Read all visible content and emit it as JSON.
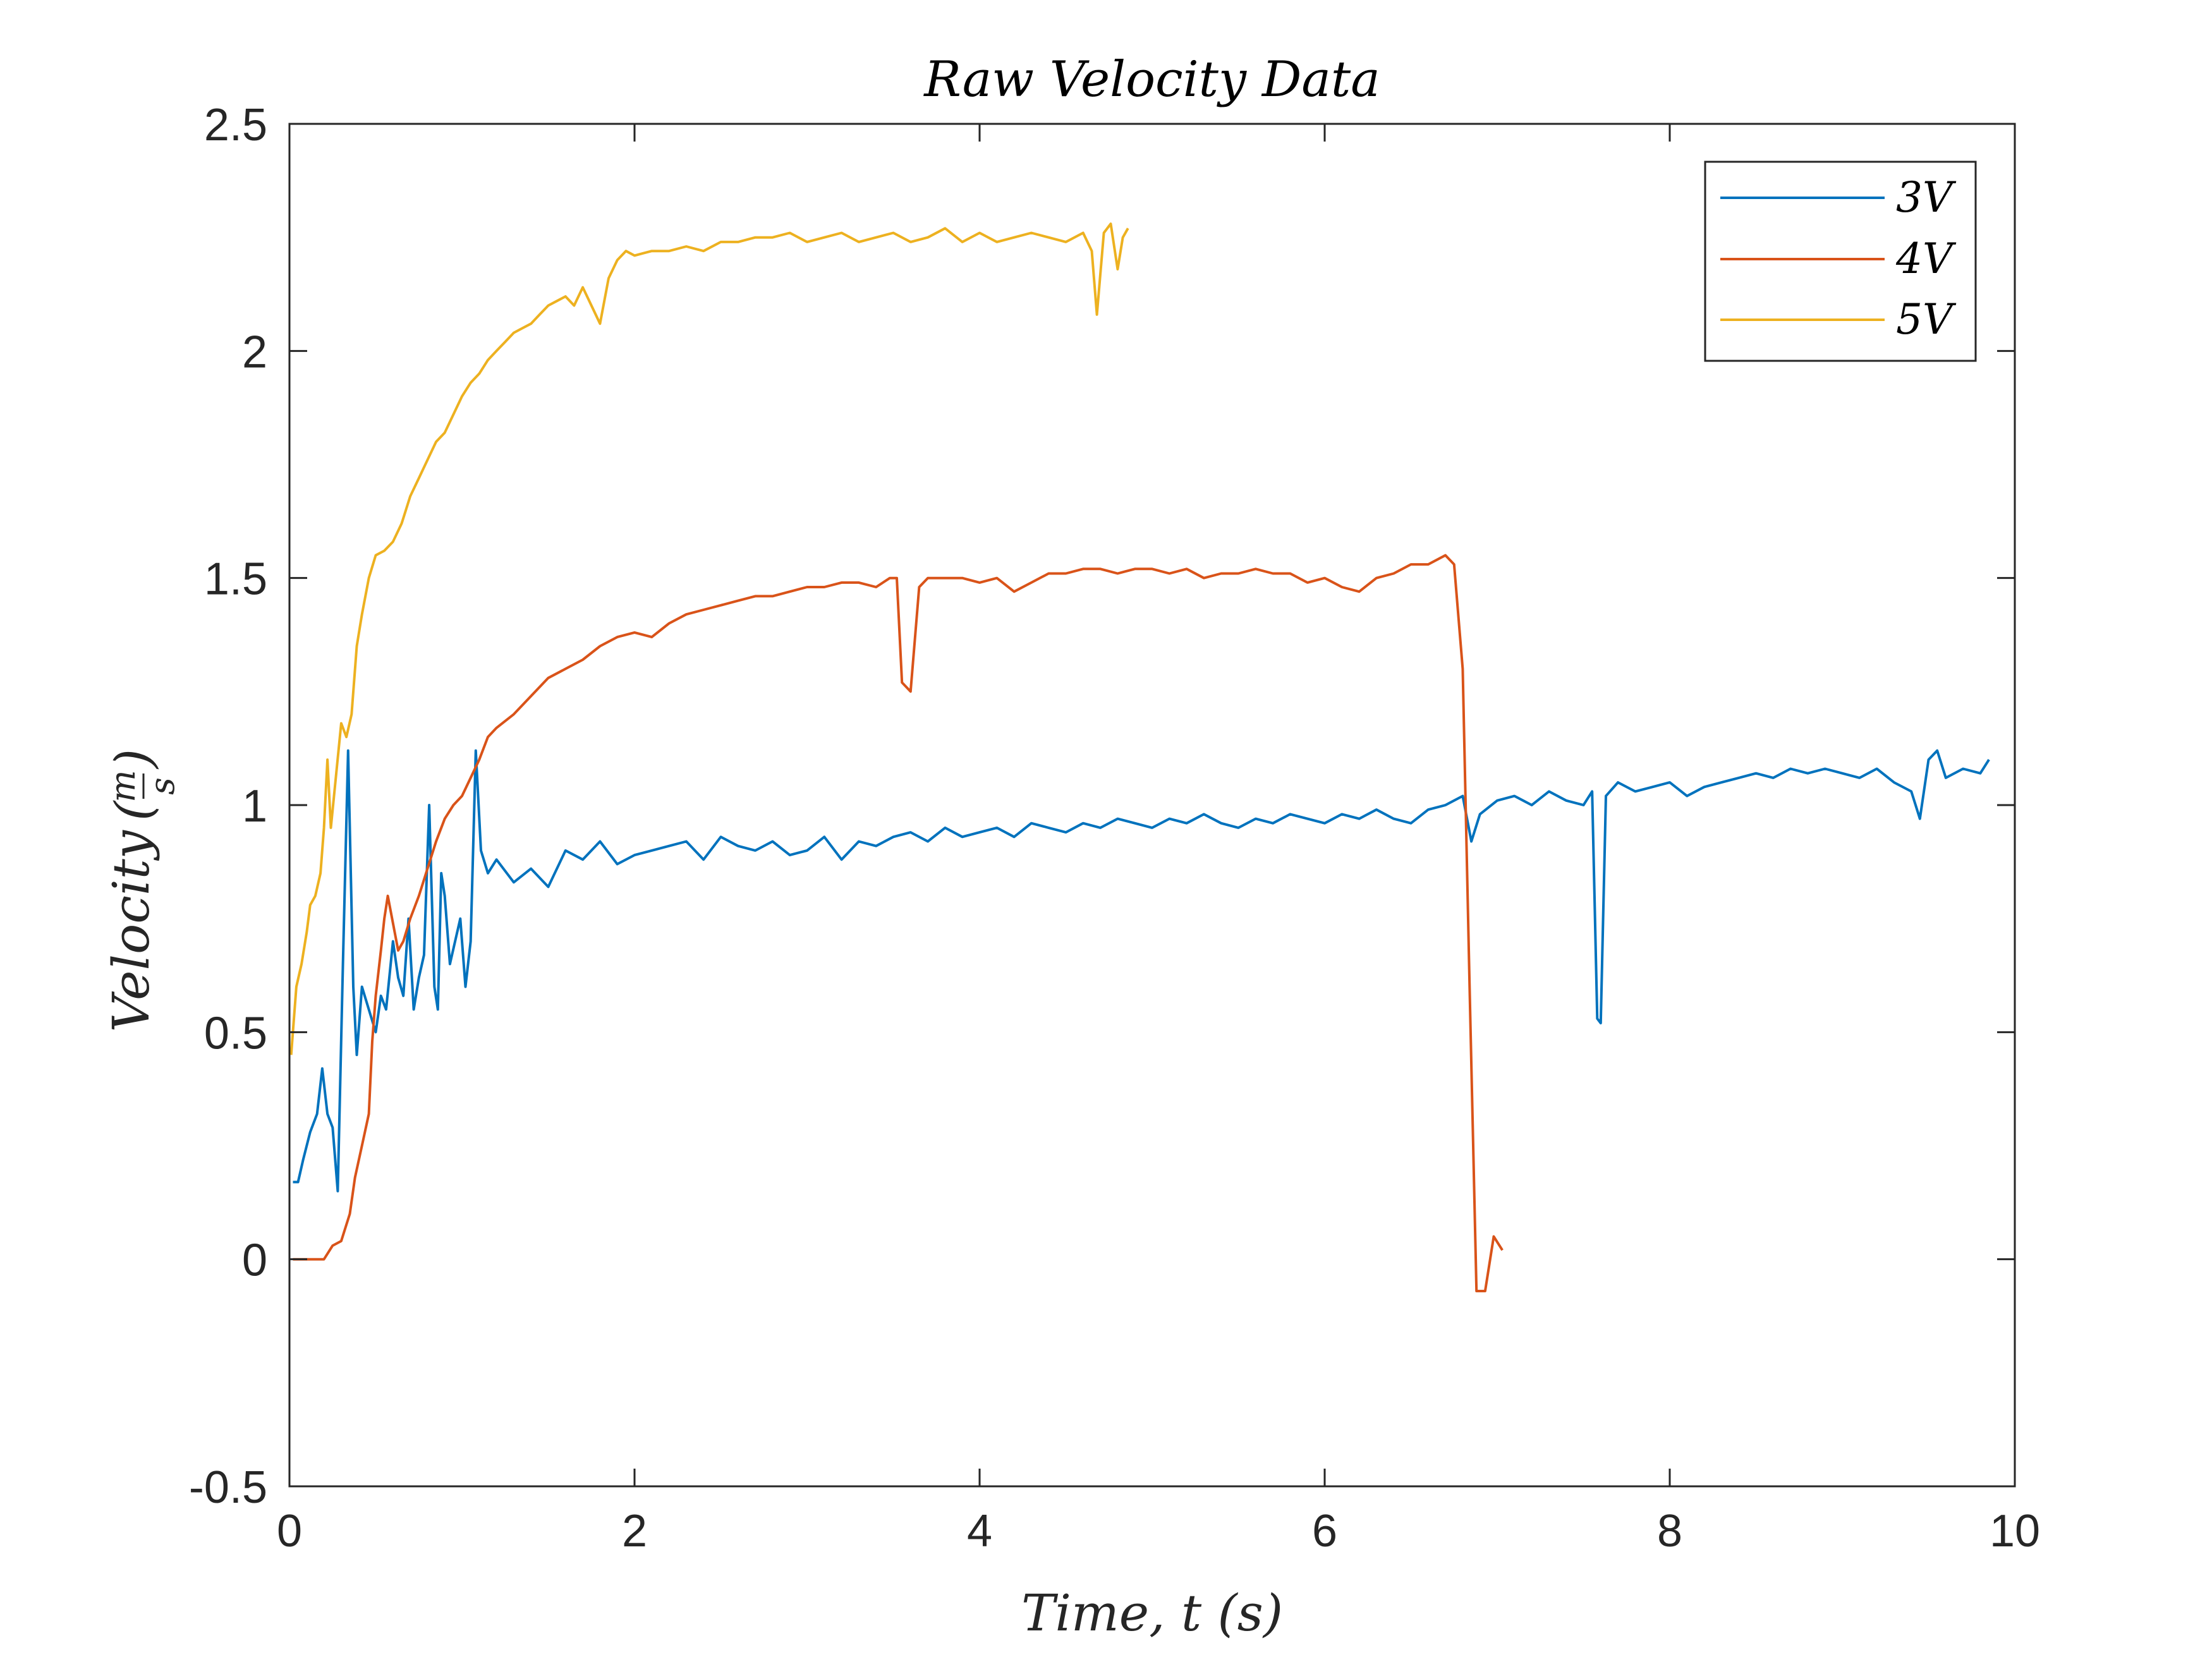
{
  "chart_data": {
    "type": "line",
    "title": "Raw Velocity Data",
    "xlabel": "Time, t (s)",
    "ylabel": "Velocity (m/s)",
    "ylabel_main": "Velocity",
    "ylabel_num": "m",
    "ylabel_den": "s",
    "xlim": [
      0,
      10
    ],
    "ylim": [
      -0.5,
      2.5
    ],
    "xticks": [
      0,
      2,
      4,
      6,
      8,
      10
    ],
    "xtick_labels": [
      "0",
      "2",
      "4",
      "6",
      "8",
      "10"
    ],
    "yticks": [
      -0.5,
      0,
      0.5,
      1,
      1.5,
      2,
      2.5
    ],
    "ytick_labels": [
      "-0.5",
      "0",
      "0.5",
      "1",
      "1.5",
      "2",
      "2.5"
    ],
    "grid": false,
    "legend_position": "top-right",
    "series": [
      {
        "name": "3V",
        "color": "#0072BD",
        "points": [
          [
            0.02,
            0.17
          ],
          [
            0.05,
            0.17
          ],
          [
            0.08,
            0.22
          ],
          [
            0.12,
            0.28
          ],
          [
            0.16,
            0.32
          ],
          [
            0.19,
            0.42
          ],
          [
            0.22,
            0.32
          ],
          [
            0.25,
            0.29
          ],
          [
            0.28,
            0.15
          ],
          [
            0.31,
            0.65
          ],
          [
            0.34,
            1.12
          ],
          [
            0.37,
            0.6
          ],
          [
            0.39,
            0.45
          ],
          [
            0.42,
            0.6
          ],
          [
            0.46,
            0.55
          ],
          [
            0.5,
            0.5
          ],
          [
            0.53,
            0.58
          ],
          [
            0.56,
            0.55
          ],
          [
            0.6,
            0.7
          ],
          [
            0.63,
            0.62
          ],
          [
            0.66,
            0.58
          ],
          [
            0.69,
            0.75
          ],
          [
            0.72,
            0.55
          ],
          [
            0.75,
            0.62
          ],
          [
            0.78,
            0.67
          ],
          [
            0.81,
            1.0
          ],
          [
            0.84,
            0.6
          ],
          [
            0.86,
            0.55
          ],
          [
            0.88,
            0.85
          ],
          [
            0.9,
            0.8
          ],
          [
            0.93,
            0.65
          ],
          [
            0.96,
            0.7
          ],
          [
            0.99,
            0.75
          ],
          [
            1.02,
            0.6
          ],
          [
            1.05,
            0.7
          ],
          [
            1.08,
            1.12
          ],
          [
            1.11,
            0.9
          ],
          [
            1.15,
            0.85
          ],
          [
            1.2,
            0.88
          ],
          [
            1.3,
            0.83
          ],
          [
            1.4,
            0.86
          ],
          [
            1.5,
            0.82
          ],
          [
            1.6,
            0.9
          ],
          [
            1.7,
            0.88
          ],
          [
            1.8,
            0.92
          ],
          [
            1.9,
            0.87
          ],
          [
            2.0,
            0.89
          ],
          [
            2.1,
            0.9
          ],
          [
            2.2,
            0.91
          ],
          [
            2.3,
            0.92
          ],
          [
            2.4,
            0.88
          ],
          [
            2.5,
            0.93
          ],
          [
            2.6,
            0.91
          ],
          [
            2.7,
            0.9
          ],
          [
            2.8,
            0.92
          ],
          [
            2.9,
            0.89
          ],
          [
            3.0,
            0.9
          ],
          [
            3.1,
            0.93
          ],
          [
            3.2,
            0.88
          ],
          [
            3.3,
            0.92
          ],
          [
            3.4,
            0.91
          ],
          [
            3.5,
            0.93
          ],
          [
            3.6,
            0.94
          ],
          [
            3.7,
            0.92
          ],
          [
            3.8,
            0.95
          ],
          [
            3.9,
            0.93
          ],
          [
            4.0,
            0.94
          ],
          [
            4.1,
            0.95
          ],
          [
            4.2,
            0.93
          ],
          [
            4.3,
            0.96
          ],
          [
            4.4,
            0.95
          ],
          [
            4.5,
            0.94
          ],
          [
            4.6,
            0.96
          ],
          [
            4.7,
            0.95
          ],
          [
            4.8,
            0.97
          ],
          [
            4.9,
            0.96
          ],
          [
            5.0,
            0.95
          ],
          [
            5.1,
            0.97
          ],
          [
            5.2,
            0.96
          ],
          [
            5.3,
            0.98
          ],
          [
            5.4,
            0.96
          ],
          [
            5.5,
            0.95
          ],
          [
            5.6,
            0.97
          ],
          [
            5.7,
            0.96
          ],
          [
            5.8,
            0.98
          ],
          [
            5.9,
            0.97
          ],
          [
            6.0,
            0.96
          ],
          [
            6.1,
            0.98
          ],
          [
            6.2,
            0.97
          ],
          [
            6.3,
            0.99
          ],
          [
            6.4,
            0.97
          ],
          [
            6.5,
            0.96
          ],
          [
            6.6,
            0.99
          ],
          [
            6.7,
            1.0
          ],
          [
            6.8,
            1.02
          ],
          [
            6.85,
            0.92
          ],
          [
            6.9,
            0.98
          ],
          [
            7.0,
            1.01
          ],
          [
            7.1,
            1.02
          ],
          [
            7.2,
            1.0
          ],
          [
            7.3,
            1.03
          ],
          [
            7.4,
            1.01
          ],
          [
            7.5,
            1.0
          ],
          [
            7.55,
            1.03
          ],
          [
            7.58,
            0.53
          ],
          [
            7.6,
            0.52
          ],
          [
            7.63,
            1.02
          ],
          [
            7.7,
            1.05
          ],
          [
            7.8,
            1.03
          ],
          [
            7.9,
            1.04
          ],
          [
            8.0,
            1.05
          ],
          [
            8.1,
            1.02
          ],
          [
            8.2,
            1.04
          ],
          [
            8.3,
            1.05
          ],
          [
            8.4,
            1.06
          ],
          [
            8.5,
            1.07
          ],
          [
            8.6,
            1.06
          ],
          [
            8.7,
            1.08
          ],
          [
            8.8,
            1.07
          ],
          [
            8.9,
            1.08
          ],
          [
            9.0,
            1.07
          ],
          [
            9.1,
            1.06
          ],
          [
            9.2,
            1.08
          ],
          [
            9.3,
            1.05
          ],
          [
            9.4,
            1.03
          ],
          [
            9.45,
            0.97
          ],
          [
            9.5,
            1.1
          ],
          [
            9.55,
            1.12
          ],
          [
            9.6,
            1.06
          ],
          [
            9.7,
            1.08
          ],
          [
            9.8,
            1.07
          ],
          [
            9.85,
            1.1
          ]
        ]
      },
      {
        "name": "4V",
        "color": "#D95319",
        "points": [
          [
            0.02,
            0.0
          ],
          [
            0.1,
            0.0
          ],
          [
            0.2,
            0.0
          ],
          [
            0.25,
            0.03
          ],
          [
            0.3,
            0.04
          ],
          [
            0.35,
            0.1
          ],
          [
            0.38,
            0.18
          ],
          [
            0.42,
            0.25
          ],
          [
            0.46,
            0.32
          ],
          [
            0.48,
            0.48
          ],
          [
            0.5,
            0.58
          ],
          [
            0.53,
            0.68
          ],
          [
            0.55,
            0.75
          ],
          [
            0.57,
            0.8
          ],
          [
            0.6,
            0.74
          ],
          [
            0.63,
            0.68
          ],
          [
            0.66,
            0.7
          ],
          [
            0.7,
            0.75
          ],
          [
            0.75,
            0.8
          ],
          [
            0.8,
            0.86
          ],
          [
            0.85,
            0.92
          ],
          [
            0.9,
            0.97
          ],
          [
            0.95,
            1.0
          ],
          [
            1.0,
            1.02
          ],
          [
            1.05,
            1.06
          ],
          [
            1.1,
            1.1
          ],
          [
            1.15,
            1.15
          ],
          [
            1.2,
            1.17
          ],
          [
            1.3,
            1.2
          ],
          [
            1.4,
            1.24
          ],
          [
            1.5,
            1.28
          ],
          [
            1.6,
            1.3
          ],
          [
            1.7,
            1.32
          ],
          [
            1.8,
            1.35
          ],
          [
            1.9,
            1.37
          ],
          [
            2.0,
            1.38
          ],
          [
            2.1,
            1.37
          ],
          [
            2.2,
            1.4
          ],
          [
            2.3,
            1.42
          ],
          [
            2.4,
            1.43
          ],
          [
            2.5,
            1.44
          ],
          [
            2.6,
            1.45
          ],
          [
            2.7,
            1.46
          ],
          [
            2.8,
            1.46
          ],
          [
            2.9,
            1.47
          ],
          [
            3.0,
            1.48
          ],
          [
            3.1,
            1.48
          ],
          [
            3.2,
            1.49
          ],
          [
            3.3,
            1.49
          ],
          [
            3.4,
            1.48
          ],
          [
            3.48,
            1.5
          ],
          [
            3.52,
            1.5
          ],
          [
            3.55,
            1.27
          ],
          [
            3.6,
            1.25
          ],
          [
            3.65,
            1.48
          ],
          [
            3.7,
            1.5
          ],
          [
            3.8,
            1.5
          ],
          [
            3.9,
            1.5
          ],
          [
            4.0,
            1.49
          ],
          [
            4.1,
            1.5
          ],
          [
            4.2,
            1.47
          ],
          [
            4.3,
            1.49
          ],
          [
            4.4,
            1.51
          ],
          [
            4.5,
            1.51
          ],
          [
            4.6,
            1.52
          ],
          [
            4.7,
            1.52
          ],
          [
            4.8,
            1.51
          ],
          [
            4.9,
            1.52
          ],
          [
            5.0,
            1.52
          ],
          [
            5.1,
            1.51
          ],
          [
            5.2,
            1.52
          ],
          [
            5.3,
            1.5
          ],
          [
            5.4,
            1.51
          ],
          [
            5.5,
            1.51
          ],
          [
            5.6,
            1.52
          ],
          [
            5.7,
            1.51
          ],
          [
            5.8,
            1.51
          ],
          [
            5.9,
            1.49
          ],
          [
            6.0,
            1.5
          ],
          [
            6.1,
            1.48
          ],
          [
            6.2,
            1.47
          ],
          [
            6.3,
            1.5
          ],
          [
            6.4,
            1.51
          ],
          [
            6.5,
            1.53
          ],
          [
            6.6,
            1.53
          ],
          [
            6.7,
            1.55
          ],
          [
            6.75,
            1.53
          ],
          [
            6.8,
            1.3
          ],
          [
            6.84,
            0.6
          ],
          [
            6.88,
            -0.07
          ],
          [
            6.93,
            -0.07
          ],
          [
            6.98,
            0.05
          ],
          [
            7.03,
            0.02
          ]
        ]
      },
      {
        "name": "5V",
        "color": "#EDB120",
        "points": [
          [
            0.01,
            0.45
          ],
          [
            0.04,
            0.6
          ],
          [
            0.07,
            0.65
          ],
          [
            0.1,
            0.72
          ],
          [
            0.12,
            0.78
          ],
          [
            0.15,
            0.8
          ],
          [
            0.18,
            0.85
          ],
          [
            0.2,
            0.95
          ],
          [
            0.22,
            1.1
          ],
          [
            0.24,
            0.95
          ],
          [
            0.3,
            1.18
          ],
          [
            0.33,
            1.15
          ],
          [
            0.36,
            1.2
          ],
          [
            0.39,
            1.35
          ],
          [
            0.42,
            1.42
          ],
          [
            0.46,
            1.5
          ],
          [
            0.5,
            1.55
          ],
          [
            0.55,
            1.56
          ],
          [
            0.6,
            1.58
          ],
          [
            0.65,
            1.62
          ],
          [
            0.7,
            1.68
          ],
          [
            0.75,
            1.72
          ],
          [
            0.8,
            1.76
          ],
          [
            0.85,
            1.8
          ],
          [
            0.9,
            1.82
          ],
          [
            0.95,
            1.86
          ],
          [
            1.0,
            1.9
          ],
          [
            1.05,
            1.93
          ],
          [
            1.1,
            1.95
          ],
          [
            1.15,
            1.98
          ],
          [
            1.2,
            2.0
          ],
          [
            1.25,
            2.02
          ],
          [
            1.3,
            2.04
          ],
          [
            1.35,
            2.05
          ],
          [
            1.4,
            2.06
          ],
          [
            1.45,
            2.08
          ],
          [
            1.5,
            2.1
          ],
          [
            1.55,
            2.11
          ],
          [
            1.6,
            2.12
          ],
          [
            1.65,
            2.1
          ],
          [
            1.7,
            2.14
          ],
          [
            1.75,
            2.1
          ],
          [
            1.8,
            2.06
          ],
          [
            1.85,
            2.16
          ],
          [
            1.9,
            2.2
          ],
          [
            1.95,
            2.22
          ],
          [
            2.0,
            2.21
          ],
          [
            2.1,
            2.22
          ],
          [
            2.2,
            2.22
          ],
          [
            2.3,
            2.23
          ],
          [
            2.4,
            2.22
          ],
          [
            2.5,
            2.24
          ],
          [
            2.6,
            2.24
          ],
          [
            2.7,
            2.25
          ],
          [
            2.8,
            2.25
          ],
          [
            2.9,
            2.26
          ],
          [
            3.0,
            2.24
          ],
          [
            3.1,
            2.25
          ],
          [
            3.2,
            2.26
          ],
          [
            3.3,
            2.24
          ],
          [
            3.4,
            2.25
          ],
          [
            3.5,
            2.26
          ],
          [
            3.6,
            2.24
          ],
          [
            3.7,
            2.25
          ],
          [
            3.8,
            2.27
          ],
          [
            3.9,
            2.24
          ],
          [
            4.0,
            2.26
          ],
          [
            4.1,
            2.24
          ],
          [
            4.2,
            2.25
          ],
          [
            4.3,
            2.26
          ],
          [
            4.4,
            2.25
          ],
          [
            4.5,
            2.24
          ],
          [
            4.6,
            2.26
          ],
          [
            4.65,
            2.22
          ],
          [
            4.68,
            2.08
          ],
          [
            4.72,
            2.26
          ],
          [
            4.76,
            2.28
          ],
          [
            4.8,
            2.18
          ],
          [
            4.83,
            2.25
          ],
          [
            4.86,
            2.27
          ]
        ]
      }
    ]
  }
}
